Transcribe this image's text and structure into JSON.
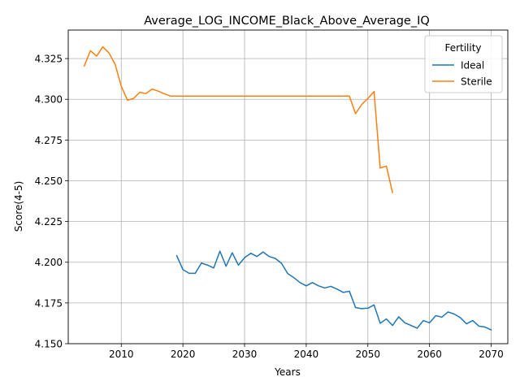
{
  "chart_data": {
    "type": "line",
    "title": "Average_LOG_INCOME_Black_Above_Average_IQ",
    "xlabel": "Years",
    "ylabel": "Score(4-5)",
    "xlim": [
      2001.4,
      2072.7
    ],
    "ylim": [
      4.15,
      4.3425
    ],
    "xticks": [
      2010,
      2020,
      2030,
      2040,
      2050,
      2060,
      2070
    ],
    "xtick_labels": [
      "2010",
      "2020",
      "2030",
      "2040",
      "2050",
      "2060",
      "2070"
    ],
    "yticks": [
      4.15,
      4.175,
      4.2,
      4.225,
      4.25,
      4.275,
      4.3,
      4.325
    ],
    "ytick_labels": [
      "4.150",
      "4.175",
      "4.200",
      "4.225",
      "4.250",
      "4.275",
      "4.300",
      "4.325"
    ],
    "grid": true,
    "legend": {
      "title": "Fertility",
      "position": "top-right"
    },
    "series": [
      {
        "name": "Ideal",
        "color": "#1f77b4",
        "x": [
          2019,
          2020,
          2021,
          2022,
          2023,
          2024,
          2025,
          2026,
          2027,
          2028,
          2029,
          2030,
          2031,
          2032,
          2033,
          2034,
          2035,
          2036,
          2037,
          2038,
          2039,
          2040,
          2041,
          2042,
          2043,
          2044,
          2045,
          2046,
          2047,
          2048,
          2049,
          2050,
          2051,
          2052,
          2053,
          2054,
          2055,
          2056,
          2057,
          2058,
          2059,
          2060,
          2061,
          2062,
          2063,
          2064,
          2065,
          2066,
          2067,
          2068,
          2069,
          2070
        ],
        "y": [
          4.204,
          4.1955,
          4.1932,
          4.1932,
          4.1995,
          4.1982,
          4.1965,
          4.2068,
          4.1975,
          4.2058,
          4.1982,
          4.2028,
          4.2055,
          4.2035,
          4.2063,
          4.2035,
          4.2023,
          4.1993,
          4.193,
          4.1905,
          4.1875,
          4.1855,
          4.1875,
          4.1855,
          4.1842,
          4.1852,
          4.1835,
          4.1815,
          4.1822,
          4.1722,
          4.1715,
          4.1718,
          4.1738,
          4.1625,
          4.1652,
          4.1612,
          4.1665,
          4.1628,
          4.1612,
          4.1595,
          4.1642,
          4.1628,
          4.1672,
          4.1663,
          4.1695,
          4.1682,
          4.166,
          4.1622,
          4.1642,
          4.1608,
          4.1602,
          4.1585
        ]
      },
      {
        "name": "Sterile",
        "color": "#ff7f0e",
        "x": [
          2004,
          2005,
          2006,
          2007,
          2008,
          2009,
          2010,
          2011,
          2012,
          2013,
          2014,
          2015,
          2016,
          2017,
          2018,
          2019,
          2020,
          2021,
          2022,
          2023,
          2024,
          2025,
          2026,
          2027,
          2028,
          2029,
          2030,
          2031,
          2032,
          2033,
          2034,
          2035,
          2036,
          2037,
          2038,
          2039,
          2040,
          2041,
          2042,
          2043,
          2044,
          2045,
          2046,
          2047,
          2048,
          2049,
          2050,
          2051,
          2052,
          2053,
          2054
        ],
        "y": [
          4.3205,
          4.3298,
          4.3265,
          4.3322,
          4.3285,
          4.3215,
          4.308,
          4.2995,
          4.3005,
          4.3043,
          4.3035,
          4.3063,
          4.305,
          4.3033,
          4.302,
          4.302,
          4.302,
          4.302,
          4.302,
          4.302,
          4.302,
          4.302,
          4.302,
          4.302,
          4.302,
          4.302,
          4.302,
          4.302,
          4.302,
          4.302,
          4.302,
          4.302,
          4.302,
          4.302,
          4.302,
          4.302,
          4.302,
          4.302,
          4.302,
          4.302,
          4.302,
          4.302,
          4.302,
          4.302,
          4.2912,
          4.2968,
          4.3005,
          4.3048,
          4.2578,
          4.259,
          4.2428
        ]
      }
    ]
  }
}
